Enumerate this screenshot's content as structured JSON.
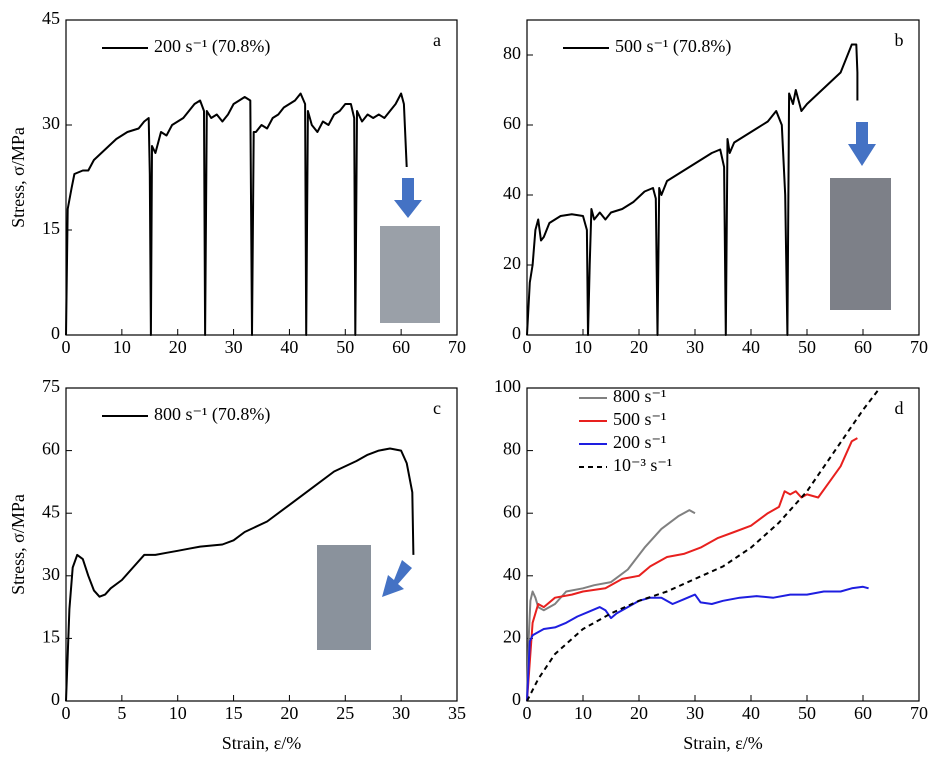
{
  "chart_data": [
    {
      "type": "line",
      "annotation": "a",
      "ylabel": "Stress, σ/MPa",
      "xlim": [
        0,
        70
      ],
      "ylim": [
        0,
        45
      ],
      "xticks": [
        0,
        10,
        20,
        30,
        40,
        50,
        60,
        70
      ],
      "yticks": [
        0,
        15,
        30,
        45
      ],
      "legend": "upper left",
      "series": [
        {
          "name": "200 s⁻¹ (70.8%)",
          "color": "#000000",
          "x": [
            0,
            0.3,
            1,
            1.5,
            3,
            4,
            5,
            7,
            9,
            11,
            13,
            14,
            14.8,
            15,
            15.2,
            15.4,
            16,
            17,
            18,
            19,
            20,
            21,
            22,
            23,
            24,
            24.7,
            24.9,
            25.2,
            26,
            27,
            28,
            29,
            30,
            31,
            32,
            33,
            33.3,
            33.6,
            34,
            35,
            36,
            37,
            38,
            39,
            40,
            41,
            42,
            42.8,
            43,
            43.3,
            44,
            45,
            46,
            47,
            48,
            49,
            50,
            51,
            51.6,
            51.8,
            52.1,
            53,
            54,
            55,
            56,
            57,
            58,
            59,
            60,
            60.5,
            61
          ],
          "values": [
            0,
            18,
            21,
            23,
            23.5,
            23.5,
            25,
            26.5,
            28,
            29,
            29.5,
            30.5,
            31,
            23,
            0,
            27,
            26,
            29,
            28.5,
            30,
            30.5,
            31,
            32,
            33,
            33.5,
            32,
            0,
            32,
            31,
            31.5,
            30.5,
            31.5,
            33,
            33.5,
            34,
            33.5,
            0,
            29,
            29,
            30,
            29.5,
            31,
            31.5,
            32.5,
            33,
            33.5,
            34.5,
            33,
            0,
            32,
            30,
            29,
            30.5,
            30,
            31.5,
            32,
            33,
            33,
            31,
            0,
            32,
            30.5,
            31.5,
            31,
            31.5,
            31,
            32,
            33,
            34.5,
            33,
            24
          ]
        }
      ]
    },
    {
      "type": "line",
      "annotation": "b",
      "xlim": [
        0,
        70
      ],
      "ylim": [
        0,
        90
      ],
      "xticks": [
        0,
        10,
        20,
        30,
        40,
        50,
        60,
        70
      ],
      "yticks": [
        0,
        20,
        40,
        60,
        80
      ],
      "legend": "upper left",
      "series": [
        {
          "name": "500 s⁻¹ (70.8%)",
          "color": "#000000",
          "x": [
            0,
            0.5,
            1,
            1.5,
            2,
            2.5,
            3,
            4,
            5,
            6,
            8,
            10,
            10.7,
            10.9,
            11.2,
            11.5,
            12,
            13,
            14,
            15,
            17,
            19,
            21,
            22.5,
            23,
            23.3,
            23.6,
            24,
            25,
            27,
            29,
            31,
            33,
            34.5,
            35.2,
            35.5,
            35.8,
            36.2,
            37,
            39,
            41,
            43,
            44.5,
            45.5,
            46.1,
            46.5,
            46.8,
            47.5,
            48,
            49,
            50,
            52,
            54,
            56,
            57,
            58,
            58.8,
            59,
            59
          ],
          "values": [
            0,
            15,
            20,
            30,
            33,
            27,
            28,
            32,
            33,
            34,
            34.5,
            34,
            30,
            0,
            20,
            36,
            33,
            35,
            33,
            35,
            36,
            38,
            41,
            42,
            39,
            0,
            42,
            40,
            44,
            46,
            48,
            50,
            52,
            53,
            48,
            0,
            56,
            52,
            55,
            57,
            59,
            61,
            64,
            60,
            40,
            0,
            69,
            66,
            70,
            64,
            66,
            69,
            72,
            75,
            79,
            83,
            83,
            75,
            67
          ]
        }
      ]
    },
    {
      "type": "line",
      "annotation": "c",
      "ylabel": "Stress, σ/MPa",
      "xlabel": "Strain, ε/%",
      "xlim": [
        0,
        35
      ],
      "ylim": [
        0,
        75
      ],
      "xticks": [
        0,
        5,
        10,
        15,
        20,
        25,
        30,
        35
      ],
      "yticks": [
        0,
        15,
        30,
        45,
        60,
        75
      ],
      "legend": "upper left",
      "series": [
        {
          "name": "800 s⁻¹ (70.8%)",
          "color": "#000000",
          "x": [
            0,
            0.3,
            0.6,
            1,
            1.5,
            2,
            2.5,
            3,
            3.5,
            4,
            5,
            6,
            7,
            8,
            9,
            10,
            11,
            12,
            14,
            15,
            16,
            18,
            20,
            22,
            24,
            26,
            27,
            28,
            29,
            30,
            30.5,
            31,
            31.1
          ],
          "values": [
            0,
            22,
            32,
            35,
            34,
            30,
            26.5,
            25,
            25.5,
            27,
            29,
            32,
            35,
            35,
            35.5,
            36,
            36.5,
            37,
            37.5,
            38.5,
            40.5,
            43,
            47,
            51,
            55,
            57.5,
            59,
            60,
            60.5,
            60,
            57,
            50,
            35
          ]
        }
      ]
    },
    {
      "type": "line",
      "annotation": "d",
      "xlabel": "Strain, ε/%",
      "xlim": [
        0,
        70
      ],
      "ylim": [
        0,
        100
      ],
      "xticks": [
        0,
        10,
        20,
        30,
        40,
        50,
        60,
        70
      ],
      "yticks": [
        0,
        20,
        40,
        60,
        80,
        100
      ],
      "legend": "upper left",
      "series": [
        {
          "name": "800 s⁻¹",
          "color": "#808080",
          "line_style": "solid",
          "x": [
            0,
            0.3,
            0.6,
            1,
            1.5,
            2,
            3,
            5,
            7,
            10,
            12,
            15,
            18,
            21,
            24,
            27,
            29,
            30
          ],
          "values": [
            0,
            20,
            32,
            35,
            33,
            30,
            29,
            31,
            35,
            36,
            37,
            38,
            42,
            49,
            55,
            59,
            61,
            60
          ]
        },
        {
          "name": "500 s⁻¹",
          "color": "#e8201e",
          "line_style": "solid",
          "x": [
            0,
            1,
            2,
            3,
            5,
            8,
            10,
            14,
            17,
            20,
            22,
            25,
            28,
            31,
            34,
            37,
            40,
            43,
            45,
            46,
            47,
            48,
            49,
            50,
            52,
            54,
            56,
            57,
            58,
            59
          ],
          "values": [
            0,
            25,
            31,
            30,
            33,
            34,
            35,
            36,
            39,
            40,
            43,
            46,
            47,
            49,
            52,
            54,
            56,
            60,
            62,
            67,
            66,
            67,
            65,
            66,
            65,
            70,
            75,
            79,
            83,
            84
          ]
        },
        {
          "name": "200 s⁻¹",
          "color": "#1e1ee0",
          "line_style": "solid",
          "x": [
            0,
            0.5,
            1,
            2,
            3,
            5,
            7,
            9,
            11,
            13,
            14,
            15,
            16,
            18,
            20,
            22,
            24,
            26,
            28,
            30,
            31,
            33,
            35,
            38,
            41,
            44,
            47,
            50,
            53,
            56,
            58,
            60,
            61
          ],
          "values": [
            0,
            19,
            21,
            22,
            23,
            23.5,
            25,
            27,
            28.5,
            30,
            29,
            26.5,
            28,
            30,
            32,
            33,
            33,
            31,
            32.5,
            34,
            31.5,
            31,
            32,
            33,
            33.5,
            33,
            34,
            34,
            35,
            35,
            36,
            36.5,
            36
          ]
        },
        {
          "name": "10⁻³ s⁻¹",
          "color": "#000000",
          "line_style": "dashed",
          "x": [
            0,
            2,
            5,
            10,
            15,
            20,
            25,
            30,
            35,
            40,
            45,
            50,
            55,
            60,
            63
          ],
          "values": [
            0,
            7,
            15,
            23,
            28,
            32,
            35,
            39,
            43,
            49,
            57,
            67,
            80,
            93,
            100
          ]
        }
      ]
    }
  ]
}
